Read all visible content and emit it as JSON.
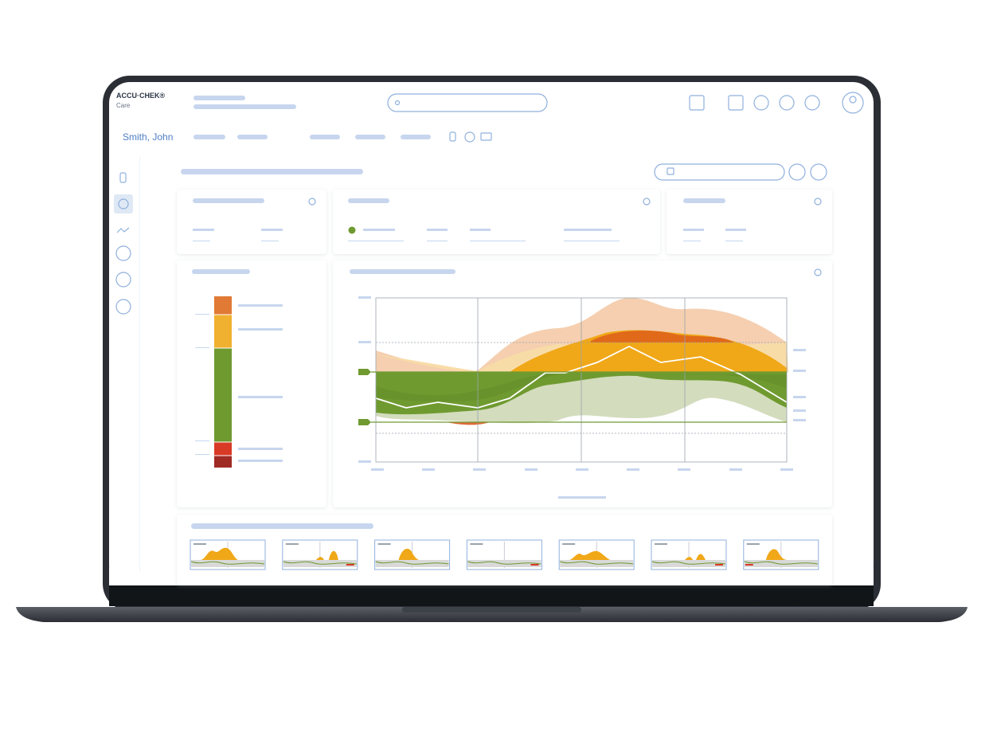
{
  "header": {
    "brand": "ACCU·CHEK®",
    "product": "Care"
  },
  "patient": {
    "name": "Smith, John"
  }
}
